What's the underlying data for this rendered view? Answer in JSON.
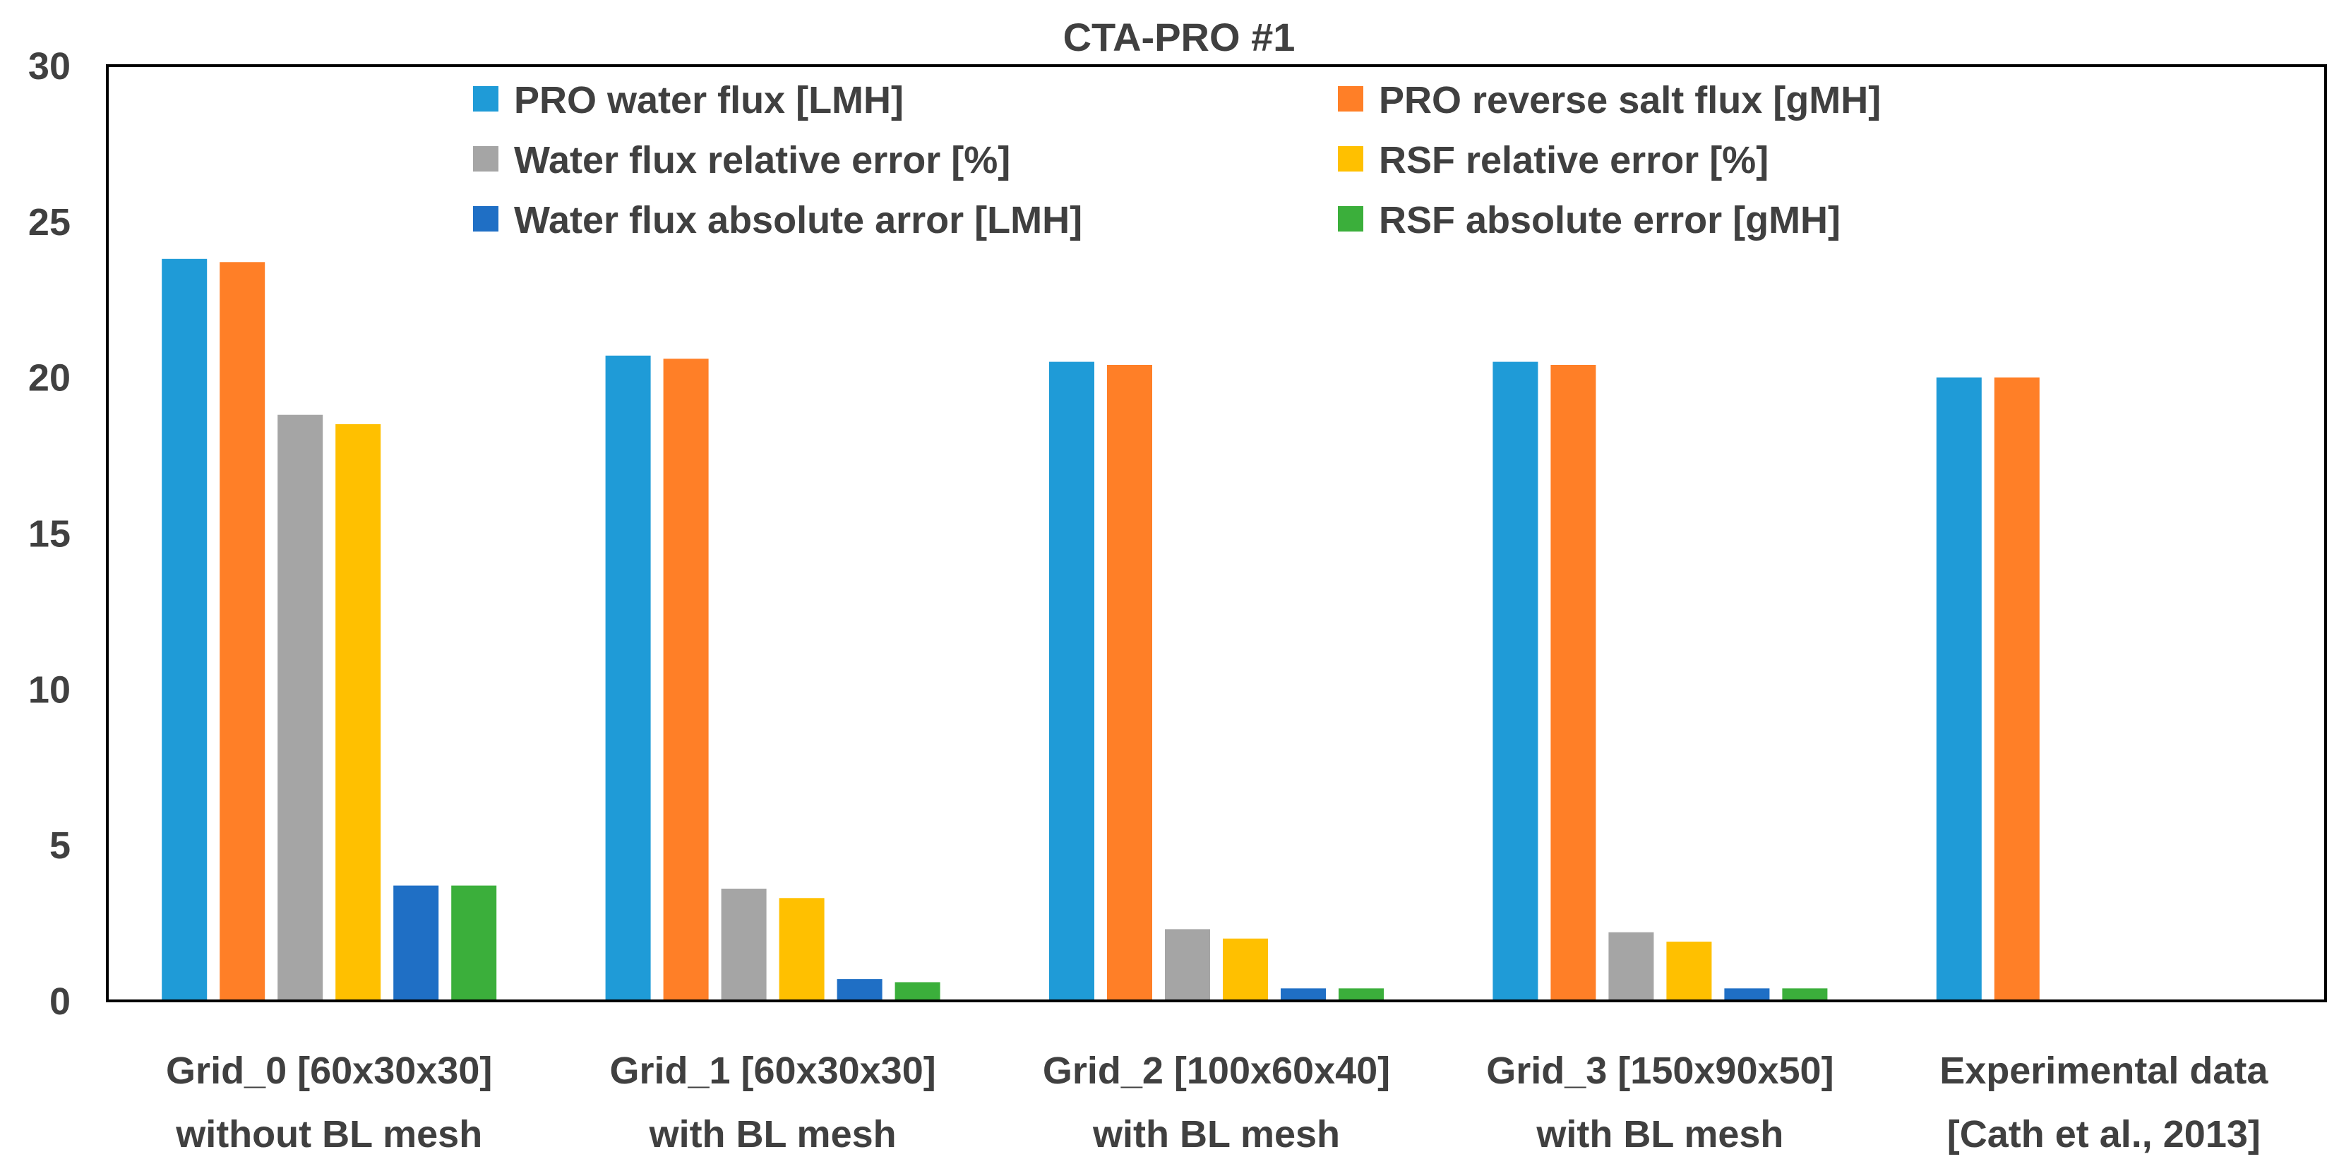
{
  "chart_data": {
    "type": "bar",
    "title": "CTA-PRO #1",
    "xlabel": "",
    "ylabel": "",
    "ylim": [
      0,
      30
    ],
    "yticks": [
      "0",
      "5",
      "10",
      "15",
      "20",
      "25",
      "30"
    ],
    "grid": false,
    "legend_position": "top-center",
    "categories": [
      {
        "line1": "Grid_0 [60x30x30]",
        "line2": "without BL mesh"
      },
      {
        "line1": "Grid_1 [60x30x30]",
        "line2": "with BL mesh"
      },
      {
        "line1": "Grid_2 [100x60x40]",
        "line2": "with BL mesh"
      },
      {
        "line1": "Grid_3 [150x90x50]",
        "line2": "with BL mesh"
      },
      {
        "line1": "Experimental data",
        "line2": "[Cath et al., 2013]"
      }
    ],
    "series": [
      {
        "name": "PRO water flux [LMH]",
        "color": "#1F9BD7",
        "values": [
          23.8,
          20.7,
          20.5,
          20.5,
          20.0
        ]
      },
      {
        "name": "PRO reverse salt flux [gMH]",
        "color": "#FF7F27",
        "values": [
          23.7,
          20.6,
          20.4,
          20.4,
          20.0
        ]
      },
      {
        "name": "Water flux relative error [%]",
        "color": "#A5A5A5",
        "values": [
          18.8,
          3.6,
          2.3,
          2.2,
          null
        ]
      },
      {
        "name": "RSF relative error [%]",
        "color": "#FFC000",
        "values": [
          18.5,
          3.3,
          2.0,
          1.9,
          null
        ]
      },
      {
        "name": "Water flux absolute arror [LMH]",
        "color": "#1F6FC5",
        "values": [
          3.7,
          0.7,
          0.4,
          0.4,
          null
        ]
      },
      {
        "name": "RSF absolute error [gMH]",
        "color": "#3BAF3B",
        "values": [
          3.7,
          0.6,
          0.4,
          0.4,
          null
        ]
      }
    ]
  }
}
